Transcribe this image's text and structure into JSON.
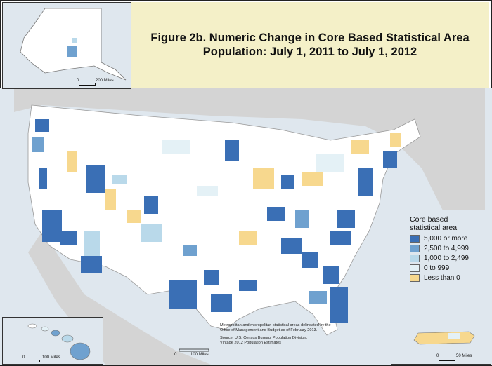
{
  "title": {
    "line1": "Figure 2b. Numeric Change in Core Based Statistical Area",
    "line2": "Population: July 1, 2011 to July 1, 2012"
  },
  "legend": {
    "title_line1": "Core based",
    "title_line2": "statistical area",
    "items": [
      {
        "label": "5,000 or more",
        "color": "#3a6fb5"
      },
      {
        "label": "2,500 to 4,999",
        "color": "#6fa1cf"
      },
      {
        "label": "1,000 to 2,499",
        "color": "#b9d9ea"
      },
      {
        "label": "0 to 999",
        "color": "#e4f1f6"
      },
      {
        "label": "Less than 0",
        "color": "#f7d88e"
      }
    ]
  },
  "notes": {
    "line1": "Metropolitan and micropolitan statistical areas delineated by the",
    "line2": "Office of Management and Budget as of February 2013.",
    "line3": "Source: U.S. Census Bureau, Population Division,",
    "line4": "Vintage 2012 Population Estimates"
  },
  "scales": {
    "alaska": {
      "zero": "0",
      "distance": "200 Miles"
    },
    "hawaii": {
      "zero": "0",
      "distance": "100 Miles"
    },
    "conus": {
      "zero": "0",
      "distance": "100 Miles"
    },
    "pr": {
      "zero": "0",
      "distance": "50 Miles"
    }
  },
  "colors": {
    "water": "#dfe7ee",
    "land": "#ffffff",
    "neighbor_land": "#d4d4d4",
    "title_bg": "#f4f0c8"
  }
}
